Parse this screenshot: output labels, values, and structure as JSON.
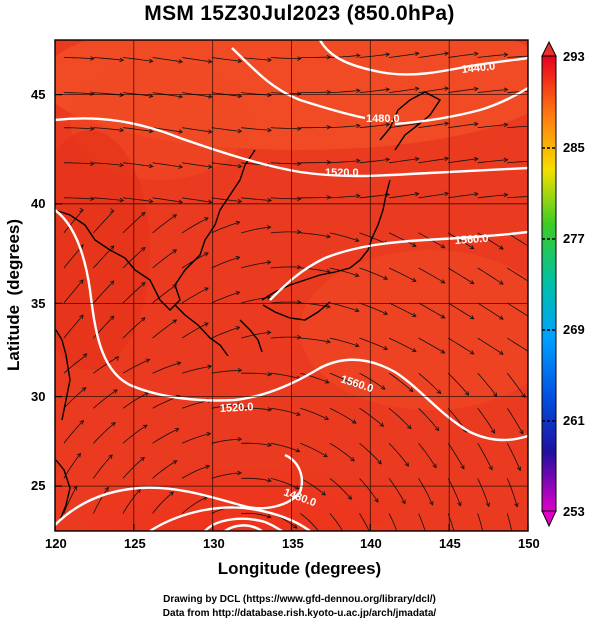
{
  "title": "MSM 15Z30Jul2023 (850.0hPa)",
  "x_axis": {
    "title": "Longitude (degrees)",
    "ticks": [
      "120",
      "125",
      "130",
      "135",
      "140",
      "145",
      "150"
    ]
  },
  "y_axis": {
    "title": "Latitude  (degrees)",
    "ticks": [
      "45",
      "40",
      "35",
      "30",
      "25"
    ]
  },
  "colorbar": {
    "labels": [
      "293",
      "285",
      "277",
      "269",
      "261",
      "253"
    ]
  },
  "contour_labels": [
    "1440.0",
    "1480.0",
    "1520.0",
    "1560.0",
    "1560.0",
    "1520.0",
    "1480.0"
  ],
  "credits": {
    "line1": "Drawing by DCL (https://www.gfd-dennou.org/library/dcl/)",
    "line2": "Data from http://database.rish.kyoto-u.ac.jp/arch/jmadata/"
  },
  "colors": {
    "warm_field": "#e8361e",
    "contour": "#ffffff",
    "streamline": "#111111"
  }
}
